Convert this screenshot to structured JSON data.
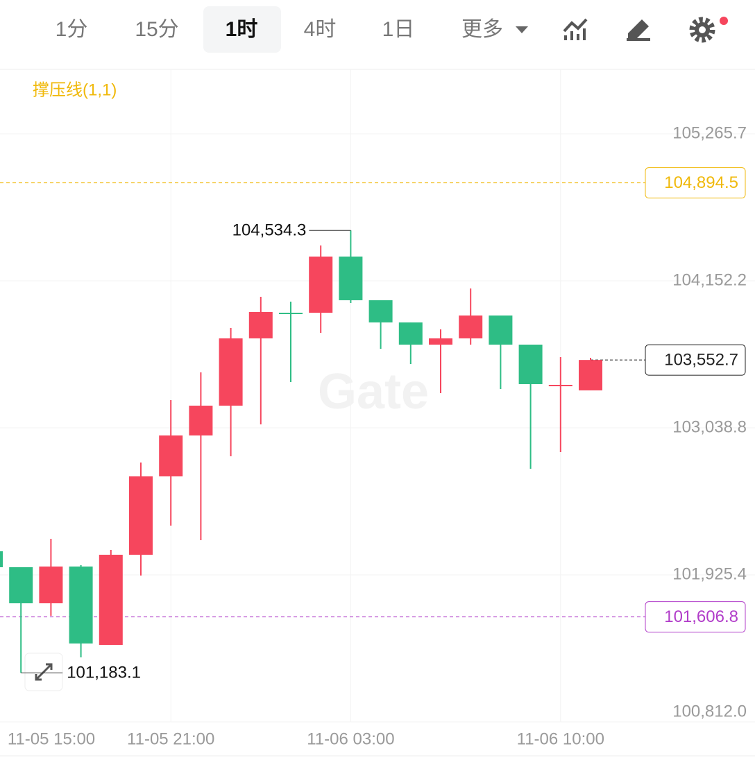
{
  "toolbar": {
    "tabs": [
      "1分",
      "15分",
      "1时",
      "4时",
      "1日",
      "更多"
    ],
    "active": "1时"
  },
  "chart_data": {
    "type": "candlestick",
    "legend": "撑压线(1,1)",
    "watermark": "Gate",
    "categories": [
      "11-05 15:00",
      null,
      null,
      null,
      null,
      null,
      "11-05 21:00",
      null,
      null,
      null,
      null,
      null,
      "11-06 03:00",
      null,
      null,
      null,
      null,
      null,
      null,
      "11-06 10:00",
      null
    ],
    "open": [
      102104.0,
      101983.2,
      101710.1,
      101988.4,
      101395.0,
      102077.7,
      102671.2,
      102981.1,
      103206.9,
      103716.4,
      103910.7,
      103910.7,
      104336.1,
      104005.2,
      103837.2,
      103669.1,
      103716.4,
      103889.7,
      103669.1,
      103364.5,
      103322.5
    ],
    "high": [
      102104.0,
      101983.2,
      102198.5,
      101999.0,
      102114.5,
      102776.2,
      103248.9,
      103459.0,
      103795.1,
      104031.5,
      103994.7,
      104420.1,
      104534.3,
      104000.0,
      103837.2,
      103784.6,
      104094.5,
      103889.7,
      103669.1,
      103574.6,
      103569.3
    ],
    "low": [
      101983.2,
      101183.1,
      101615.6,
      101300.4,
      101395.0,
      101920.2,
      102298.3,
      102188.0,
      102823.5,
      103065.1,
      103385.5,
      103758.4,
      103984.2,
      103637.6,
      103522.0,
      103301.4,
      103669.1,
      103333.0,
      102729.0,
      102855.0,
      103322.5
    ],
    "close": [
      101983.2,
      101710.1,
      101988.4,
      101405.5,
      102077.7,
      102671.2,
      102981.1,
      103206.9,
      103716.4,
      103916.0,
      103905.4,
      104336.1,
      104005.2,
      103837.2,
      103669.1,
      103716.4,
      103889.7,
      103669.1,
      103369.7,
      103364.5,
      103552.7
    ],
    "up_color": "#f6465d",
    "down_color": "#2ebd85",
    "ylim": [
      100812.0,
      105754.0
    ],
    "yticks": [
      {
        "value": 100812.0,
        "label": "100,812.0"
      },
      {
        "value": 101925.4,
        "label": "101,925.4"
      },
      {
        "value": 103038.8,
        "label": "103,038.8"
      },
      {
        "value": 104152.2,
        "label": "104,152.2"
      },
      {
        "value": 105265.7,
        "label": "105,265.7"
      }
    ],
    "reference_lines": [
      {
        "value": 104894.5,
        "label": "104,894.5",
        "color": "#f0b90b"
      },
      {
        "value": 101606.8,
        "label": "101,606.8",
        "color": "#b13cc9"
      },
      {
        "value": 103552.7,
        "label": "103,552.7",
        "color": "#222222"
      }
    ],
    "annotations": [
      {
        "value": 104534.3,
        "label": "104,534.3"
      },
      {
        "value": 101183.1,
        "label": "101,183.1"
      }
    ]
  }
}
